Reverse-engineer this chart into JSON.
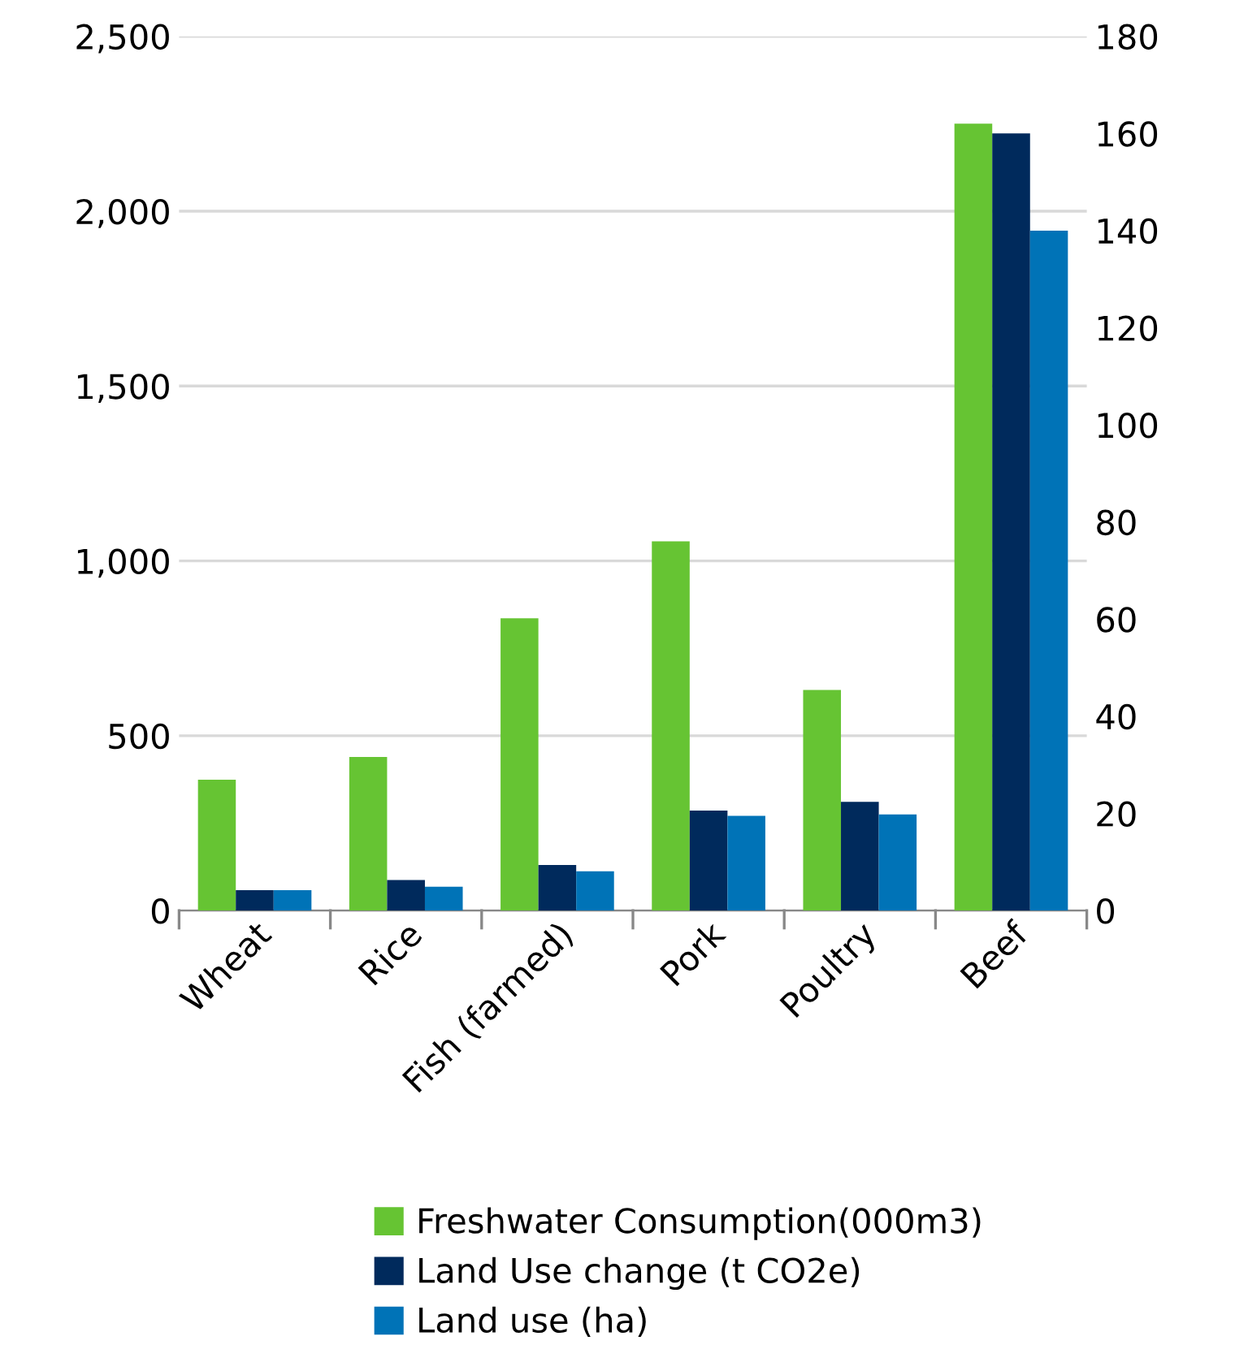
{
  "chart_data": {
    "type": "bar",
    "categories": [
      "Wheat",
      "Rice",
      "Fish (farmed)",
      "Pork",
      "Poultry",
      "Beef"
    ],
    "series": [
      {
        "name": "Freshwater Consumption(000m3)",
        "color": "#66c433",
        "values": [
          374,
          439,
          836,
          1056,
          631,
          2250
        ]
      },
      {
        "name": "Land Use change (t CO2e)",
        "color": "#002a5c",
        "axis": "y2",
        "values": [
          4.2,
          6.3,
          9.4,
          20.6,
          22.4,
          160
        ]
      },
      {
        "name": "Land use (ha)",
        "color": "#0073b7",
        "axis": "y2",
        "values": [
          4.2,
          4.9,
          8.1,
          19.5,
          19.8,
          140
        ]
      }
    ],
    "ylim": [
      0,
      2500
    ],
    "yticks": [
      0,
      {
        "value": 500,
        "label": "500"
      },
      {
        "value": 1000,
        "label": "1,000"
      },
      {
        "value": 1500,
        "label": "1,500"
      },
      {
        "value": 2000,
        "label": "2,000"
      },
      {
        "value": 2500,
        "label": "2,500"
      }
    ],
    "y2lim": [
      0,
      180
    ],
    "y2ticks": [
      0,
      20,
      40,
      60,
      80,
      100,
      120,
      140,
      160,
      180
    ],
    "grid": "y",
    "legend": "bottom"
  }
}
